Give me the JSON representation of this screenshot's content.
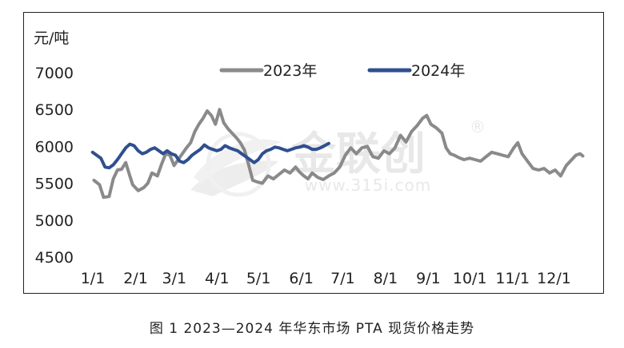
{
  "caption": "图 1  2023—2024 年华东市场 PTA 现货价格走势",
  "watermark": {
    "brand": "金联创",
    "registered": "®",
    "url": "www.315i.com"
  },
  "chart_data": {
    "type": "line",
    "ylabel": "元/吨",
    "ylim": [
      4500,
      7000
    ],
    "yticks": [
      4500,
      5000,
      5500,
      6000,
      6500,
      7000
    ],
    "xlim": [
      0,
      365
    ],
    "xticks": [
      {
        "label": "1/1",
        "day": 0
      },
      {
        "label": "2/1",
        "day": 31
      },
      {
        "label": "3/1",
        "day": 59
      },
      {
        "label": "4/1",
        "day": 90
      },
      {
        "label": "5/1",
        "day": 120
      },
      {
        "label": "6/1",
        "day": 151
      },
      {
        "label": "7/1",
        "day": 181
      },
      {
        "label": "8/1",
        "day": 212
      },
      {
        "label": "9/1",
        "day": 243
      },
      {
        "label": "10/1",
        "day": 273
      },
      {
        "label": "11/1",
        "day": 304
      },
      {
        "label": "12/1",
        "day": 334
      }
    ],
    "grid": false,
    "legend_position": "top-center",
    "series": [
      {
        "name": "2023年",
        "color": "#8a8a8a",
        "points": [
          [
            2,
            5540
          ],
          [
            6,
            5480
          ],
          [
            9,
            5310
          ],
          [
            13,
            5320
          ],
          [
            16,
            5560
          ],
          [
            19,
            5680
          ],
          [
            22,
            5690
          ],
          [
            25,
            5780
          ],
          [
            28,
            5600
          ],
          [
            30,
            5480
          ],
          [
            34,
            5400
          ],
          [
            38,
            5440
          ],
          [
            41,
            5500
          ],
          [
            44,
            5640
          ],
          [
            48,
            5600
          ],
          [
            51,
            5760
          ],
          [
            54,
            5900
          ],
          [
            57,
            5880
          ],
          [
            60,
            5740
          ],
          [
            63,
            5820
          ],
          [
            66,
            5900
          ],
          [
            69,
            5980
          ],
          [
            72,
            6050
          ],
          [
            75,
            6200
          ],
          [
            78,
            6300
          ],
          [
            81,
            6380
          ],
          [
            84,
            6480
          ],
          [
            87,
            6420
          ],
          [
            90,
            6300
          ],
          [
            93,
            6500
          ],
          [
            96,
            6320
          ],
          [
            99,
            6240
          ],
          [
            102,
            6180
          ],
          [
            105,
            6120
          ],
          [
            108,
            6050
          ],
          [
            111,
            5950
          ],
          [
            114,
            5750
          ],
          [
            117,
            5540
          ],
          [
            120,
            5520
          ],
          [
            124,
            5500
          ],
          [
            128,
            5600
          ],
          [
            132,
            5560
          ],
          [
            136,
            5620
          ],
          [
            140,
            5680
          ],
          [
            144,
            5640
          ],
          [
            148,
            5720
          ],
          [
            151,
            5650
          ],
          [
            154,
            5600
          ],
          [
            157,
            5560
          ],
          [
            160,
            5640
          ],
          [
            164,
            5580
          ],
          [
            168,
            5550
          ],
          [
            172,
            5600
          ],
          [
            176,
            5640
          ],
          [
            180,
            5720
          ],
          [
            184,
            5880
          ],
          [
            188,
            5980
          ],
          [
            192,
            5900
          ],
          [
            196,
            5980
          ],
          [
            200,
            6000
          ],
          [
            204,
            5860
          ],
          [
            208,
            5840
          ],
          [
            212,
            5940
          ],
          [
            216,
            5900
          ],
          [
            220,
            5980
          ],
          [
            224,
            6150
          ],
          [
            228,
            6060
          ],
          [
            232,
            6200
          ],
          [
            236,
            6280
          ],
          [
            240,
            6380
          ],
          [
            243,
            6420
          ],
          [
            246,
            6300
          ],
          [
            250,
            6250
          ],
          [
            254,
            6180
          ],
          [
            257,
            5980
          ],
          [
            260,
            5900
          ],
          [
            263,
            5880
          ],
          [
            266,
            5850
          ],
          [
            270,
            5820
          ],
          [
            274,
            5840
          ],
          [
            278,
            5820
          ],
          [
            282,
            5800
          ],
          [
            286,
            5860
          ],
          [
            290,
            5920
          ],
          [
            294,
            5900
          ],
          [
            298,
            5880
          ],
          [
            302,
            5860
          ],
          [
            306,
            5980
          ],
          [
            309,
            6050
          ],
          [
            312,
            5900
          ],
          [
            316,
            5800
          ],
          [
            320,
            5700
          ],
          [
            324,
            5680
          ],
          [
            328,
            5700
          ],
          [
            332,
            5640
          ],
          [
            336,
            5680
          ],
          [
            340,
            5600
          ],
          [
            344,
            5740
          ],
          [
            348,
            5820
          ],
          [
            351,
            5880
          ],
          [
            354,
            5900
          ],
          [
            356,
            5870
          ]
        ]
      },
      {
        "name": "2024年",
        "color": "#2f4f8f",
        "points": [
          [
            1,
            5920
          ],
          [
            4,
            5880
          ],
          [
            7,
            5840
          ],
          [
            10,
            5720
          ],
          [
            13,
            5710
          ],
          [
            16,
            5750
          ],
          [
            19,
            5820
          ],
          [
            22,
            5900
          ],
          [
            25,
            5980
          ],
          [
            28,
            6030
          ],
          [
            31,
            6010
          ],
          [
            34,
            5940
          ],
          [
            37,
            5900
          ],
          [
            40,
            5920
          ],
          [
            43,
            5960
          ],
          [
            46,
            5980
          ],
          [
            49,
            5940
          ],
          [
            52,
            5900
          ],
          [
            55,
            5940
          ],
          [
            58,
            5900
          ],
          [
            61,
            5880
          ],
          [
            64,
            5800
          ],
          [
            67,
            5780
          ],
          [
            70,
            5820
          ],
          [
            73,
            5880
          ],
          [
            76,
            5920
          ],
          [
            79,
            5960
          ],
          [
            82,
            6020
          ],
          [
            85,
            5980
          ],
          [
            88,
            5960
          ],
          [
            91,
            5940
          ],
          [
            94,
            5960
          ],
          [
            97,
            6010
          ],
          [
            100,
            5980
          ],
          [
            103,
            5960
          ],
          [
            106,
            5940
          ],
          [
            109,
            5900
          ],
          [
            112,
            5860
          ],
          [
            115,
            5820
          ],
          [
            118,
            5780
          ],
          [
            121,
            5820
          ],
          [
            124,
            5900
          ],
          [
            127,
            5940
          ],
          [
            130,
            5960
          ],
          [
            133,
            5990
          ],
          [
            136,
            5980
          ],
          [
            139,
            5960
          ],
          [
            142,
            5940
          ],
          [
            145,
            5960
          ],
          [
            148,
            5980
          ],
          [
            151,
            5990
          ],
          [
            154,
            6010
          ],
          [
            157,
            5990
          ],
          [
            160,
            5960
          ],
          [
            163,
            5960
          ],
          [
            166,
            5980
          ],
          [
            169,
            6010
          ],
          [
            172,
            6040
          ]
        ]
      }
    ]
  }
}
